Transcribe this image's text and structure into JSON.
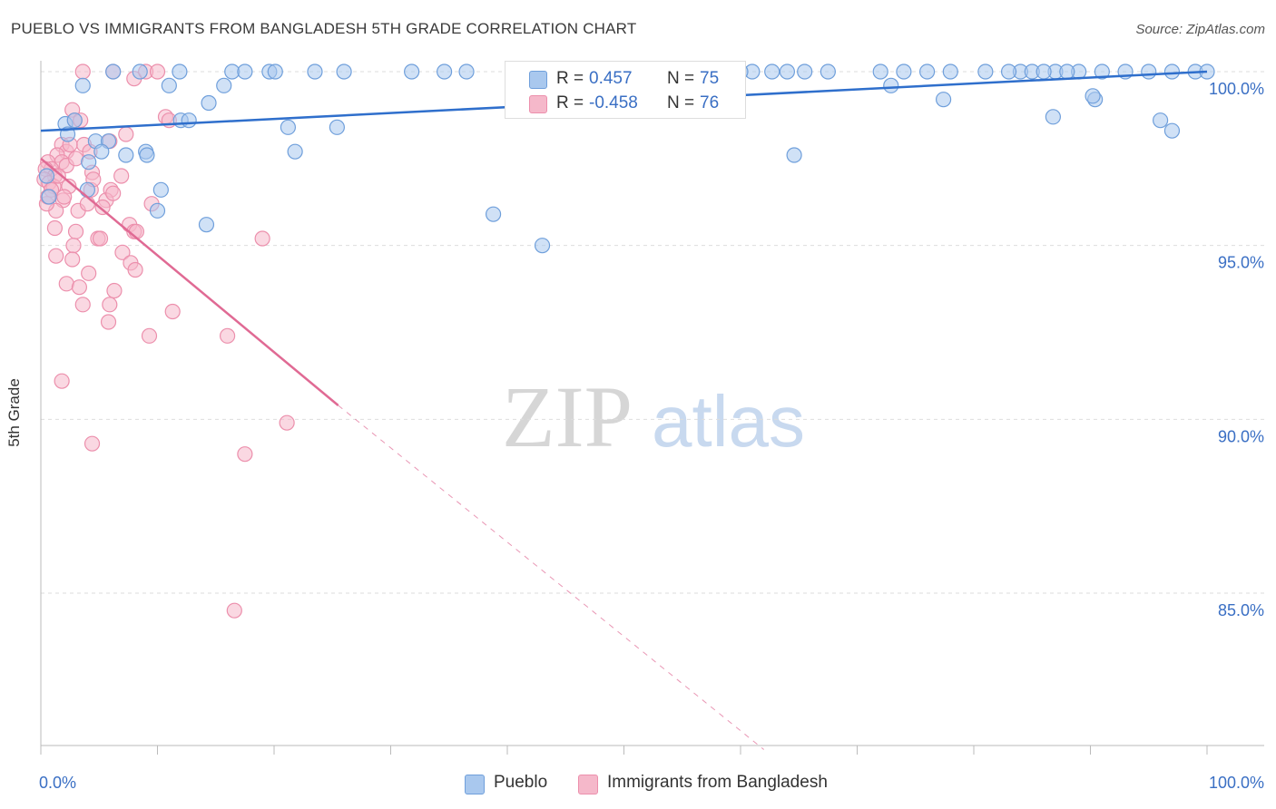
{
  "title": "PUEBLO VS IMMIGRANTS FROM BANGLADESH 5TH GRADE CORRELATION CHART",
  "source": "Source: ZipAtlas.com",
  "watermark": {
    "zip": "ZIP",
    "atlas": "atlas"
  },
  "legend": {
    "rows": [
      {
        "r_label": "R =",
        "r_value": "0.457",
        "n_label": "N =",
        "n_value": "75"
      },
      {
        "r_label": "R =",
        "r_value": "-0.458",
        "n_label": "N =",
        "n_value": "76"
      }
    ]
  },
  "colors": {
    "blue_fill": "#a9c8ee",
    "blue_stroke": "#6f9fdb",
    "blue_line": "#2f6fcc",
    "pink_fill": "#f5b8ca",
    "pink_stroke": "#ec8fac",
    "pink_line": "#e06a94",
    "tick_text": "#3a6fc4",
    "grid": "#dddddd"
  },
  "chart_data": {
    "type": "scatter",
    "title": "PUEBLO VS IMMIGRANTS FROM BANGLADESH 5TH GRADE CORRELATION CHART",
    "xlabel": "",
    "ylabel": "5th Grade",
    "xlim": [
      0,
      100
    ],
    "ylim": [
      80.5,
      100.8
    ],
    "x_tick_labels": [
      {
        "value": 0,
        "label": "0.0%"
      },
      {
        "value": 100,
        "label": "100.0%"
      }
    ],
    "y_tick_labels": [
      {
        "value": 100,
        "label": "100.0%"
      },
      {
        "value": 95,
        "label": "95.0%"
      },
      {
        "value": 90,
        "label": "90.0%"
      },
      {
        "value": 85,
        "label": "85.0%"
      }
    ],
    "grid": true,
    "legend_position": "top-center",
    "series": [
      {
        "name": "Pueblo",
        "color": "#a9c8ee",
        "trend": {
          "x": [
            0,
            100
          ],
          "y": [
            98.3,
            100.0
          ]
        },
        "points": [
          [
            6.2,
            100
          ],
          [
            8.5,
            100
          ],
          [
            11.9,
            100
          ],
          [
            16.4,
            100
          ],
          [
            17.5,
            100
          ],
          [
            19.6,
            100
          ],
          [
            20.1,
            100
          ],
          [
            23.5,
            100
          ],
          [
            26.0,
            100
          ],
          [
            31.8,
            100
          ],
          [
            34.6,
            100
          ],
          [
            36.5,
            100
          ],
          [
            59.0,
            100
          ],
          [
            61.0,
            100
          ],
          [
            78.0,
            100
          ],
          [
            84.0,
            100
          ],
          [
            85.0,
            100
          ],
          [
            87.0,
            100
          ],
          [
            89.0,
            100
          ],
          [
            91.0,
            100
          ],
          [
            93.0,
            100
          ],
          [
            95.0,
            100
          ],
          [
            97.0,
            100
          ],
          [
            99.0,
            100
          ],
          [
            100,
            100
          ],
          [
            45.0,
            100
          ],
          [
            50.0,
            100
          ],
          [
            60.0,
            100
          ],
          [
            62.7,
            100
          ],
          [
            64.0,
            100
          ],
          [
            65.5,
            100
          ],
          [
            67.5,
            100
          ],
          [
            72.0,
            100
          ],
          [
            74.0,
            100
          ],
          [
            76.0,
            100
          ],
          [
            81.0,
            100
          ],
          [
            83.0,
            100
          ],
          [
            86.0,
            100
          ],
          [
            88.0,
            100
          ],
          [
            3.6,
            99.6
          ],
          [
            11.0,
            99.6
          ],
          [
            15.7,
            99.6
          ],
          [
            72.9,
            99.6
          ],
          [
            42.2,
            99.6
          ],
          [
            14.4,
            99.1
          ],
          [
            77.4,
            99.2
          ],
          [
            86.8,
            98.7
          ],
          [
            90.4,
            99.2
          ],
          [
            96.0,
            98.6
          ],
          [
            97.0,
            98.3
          ],
          [
            90.2,
            99.3
          ],
          [
            2.1,
            98.5
          ],
          [
            2.9,
            98.6
          ],
          [
            12.0,
            98.6
          ],
          [
            12.7,
            98.6
          ],
          [
            21.2,
            98.4
          ],
          [
            25.4,
            98.4
          ],
          [
            2.3,
            98.2
          ],
          [
            4.7,
            98.0
          ],
          [
            5.8,
            98.0
          ],
          [
            5.2,
            97.7
          ],
          [
            7.3,
            97.6
          ],
          [
            9.0,
            97.7
          ],
          [
            9.1,
            97.6
          ],
          [
            21.8,
            97.7
          ],
          [
            64.6,
            97.6
          ],
          [
            4.1,
            97.4
          ],
          [
            4.0,
            96.6
          ],
          [
            10.3,
            96.6
          ],
          [
            0.7,
            96.4
          ],
          [
            0.5,
            97.0
          ],
          [
            10.0,
            96.0
          ],
          [
            14.2,
            95.6
          ],
          [
            38.8,
            95.9
          ],
          [
            43.0,
            95.0
          ]
        ]
      },
      {
        "name": "Immigrants from Bangladesh",
        "color": "#f5b8ca",
        "trend": {
          "x": [
            0,
            25.5
          ],
          "y": [
            97.5,
            90.4
          ]
        },
        "trend_dashed": {
          "x": [
            25.5,
            62.0
          ],
          "y": [
            90.4,
            80.5
          ]
        },
        "points": [
          [
            3.6,
            100
          ],
          [
            6.2,
            100
          ],
          [
            8.0,
            99.8
          ],
          [
            9.0,
            100
          ],
          [
            10.0,
            100
          ],
          [
            2.7,
            98.9
          ],
          [
            2.9,
            98.6
          ],
          [
            3.4,
            98.6
          ],
          [
            10.7,
            98.7
          ],
          [
            11.0,
            98.6
          ],
          [
            7.3,
            98.2
          ],
          [
            5.9,
            98.0
          ],
          [
            1.8,
            97.9
          ],
          [
            2.2,
            97.7
          ],
          [
            3.7,
            97.9
          ],
          [
            4.2,
            97.7
          ],
          [
            1.4,
            97.6
          ],
          [
            1.8,
            97.4
          ],
          [
            0.6,
            97.4
          ],
          [
            0.9,
            97.2
          ],
          [
            0.4,
            97.2
          ],
          [
            1.2,
            97.0
          ],
          [
            2.2,
            97.3
          ],
          [
            4.4,
            97.1
          ],
          [
            0.3,
            96.9
          ],
          [
            0.7,
            96.8
          ],
          [
            1.1,
            96.7
          ],
          [
            2.4,
            96.7
          ],
          [
            4.3,
            96.6
          ],
          [
            6.0,
            96.6
          ],
          [
            1.9,
            96.3
          ],
          [
            1.3,
            96.0
          ],
          [
            3.2,
            96.0
          ],
          [
            4.0,
            96.2
          ],
          [
            5.6,
            96.3
          ],
          [
            6.2,
            96.5
          ],
          [
            0.5,
            96.2
          ],
          [
            7.6,
            95.6
          ],
          [
            8.0,
            95.4
          ],
          [
            1.2,
            95.5
          ],
          [
            3.0,
            95.4
          ],
          [
            4.9,
            95.2
          ],
          [
            5.1,
            95.2
          ],
          [
            2.8,
            95.0
          ],
          [
            7.0,
            94.8
          ],
          [
            1.3,
            94.7
          ],
          [
            2.7,
            94.6
          ],
          [
            7.7,
            94.5
          ],
          [
            8.1,
            94.3
          ],
          [
            4.1,
            94.2
          ],
          [
            2.2,
            93.9
          ],
          [
            3.3,
            93.8
          ],
          [
            6.3,
            93.7
          ],
          [
            3.6,
            93.3
          ],
          [
            5.9,
            93.3
          ],
          [
            11.3,
            93.1
          ],
          [
            5.8,
            92.8
          ],
          [
            9.3,
            92.4
          ],
          [
            16.0,
            92.4
          ],
          [
            1.8,
            91.1
          ],
          [
            19.0,
            95.2
          ],
          [
            21.1,
            89.9
          ],
          [
            4.4,
            89.3
          ],
          [
            17.5,
            89.0
          ],
          [
            16.6,
            84.5
          ],
          [
            0.9,
            96.6
          ],
          [
            0.6,
            96.4
          ],
          [
            1.5,
            97.0
          ],
          [
            2.0,
            96.4
          ],
          [
            3.0,
            97.5
          ],
          [
            4.5,
            96.9
          ],
          [
            5.3,
            96.1
          ],
          [
            6.9,
            97.0
          ],
          [
            8.2,
            95.4
          ],
          [
            9.5,
            96.2
          ],
          [
            2.5,
            97.9
          ]
        ]
      }
    ]
  },
  "bottom_legend": [
    {
      "label": "Pueblo"
    },
    {
      "label": "Immigrants from Bangladesh"
    }
  ]
}
